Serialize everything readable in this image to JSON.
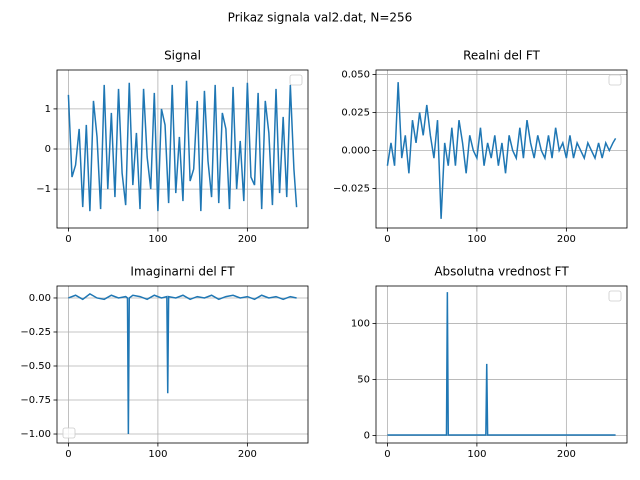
{
  "title": "Prikaz signala val2.dat, N=256",
  "chart_data": [
    {
      "type": "line",
      "title": "Signal",
      "color": "#1f77b4",
      "grid": true,
      "legend": "upper right",
      "xlim": [
        -12.75,
        267.75
      ],
      "ylim": [
        -1.97,
        1.97
      ],
      "xticks": [
        0,
        100,
        200
      ],
      "yticks": [
        {
          "value": -1,
          "label": "−1"
        },
        0,
        1
      ],
      "x": [
        0,
        4,
        8,
        12,
        16,
        20,
        24,
        28,
        32,
        36,
        40,
        44,
        48,
        52,
        56,
        60,
        64,
        68,
        72,
        76,
        80,
        84,
        88,
        92,
        96,
        100,
        104,
        108,
        112,
        116,
        120,
        124,
        128,
        132,
        136,
        140,
        144,
        148,
        152,
        156,
        160,
        164,
        168,
        172,
        176,
        180,
        184,
        188,
        192,
        196,
        200,
        204,
        208,
        212,
        216,
        220,
        224,
        228,
        232,
        236,
        240,
        244,
        248,
        252,
        255
      ],
      "values": [
        1.35,
        -0.7,
        -0.4,
        0.5,
        -1.45,
        0.6,
        -1.55,
        1.2,
        0.3,
        -1.5,
        1.6,
        -1.0,
        0.9,
        -1.2,
        1.5,
        -0.6,
        -1.4,
        1.65,
        -0.9,
        0.4,
        -1.5,
        1.5,
        -0.2,
        -1.0,
        1.4,
        -1.55,
        1.0,
        0.6,
        -1.35,
        1.6,
        -1.1,
        0.3,
        -1.3,
        1.7,
        -0.8,
        -0.5,
        1.2,
        -1.55,
        1.45,
        -0.3,
        -1.2,
        1.6,
        -1.35,
        0.9,
        0.5,
        -1.5,
        1.55,
        -1.0,
        0.2,
        -1.3,
        1.65,
        -0.7,
        -0.9,
        1.4,
        -1.5,
        1.2,
        0.4,
        -1.4,
        1.5,
        -1.1,
        0.8,
        -1.2,
        1.6,
        -0.5,
        -1.45
      ]
    },
    {
      "type": "line",
      "title": "Realni del FT",
      "color": "#1f77b4",
      "grid": true,
      "legend": "upper right",
      "xlim": [
        -12.75,
        267.75
      ],
      "ylim": [
        -0.051,
        0.053
      ],
      "xticks": [
        0,
        100,
        200
      ],
      "yticks": [
        {
          "value": -0.025,
          "label": "−0.025"
        },
        {
          "value": 0,
          "label": "0.000"
        },
        {
          "value": 0.025,
          "label": "0.025"
        },
        {
          "value": 0.05,
          "label": "0.050"
        }
      ],
      "x": [
        0,
        4,
        8,
        12,
        16,
        20,
        24,
        28,
        32,
        36,
        40,
        44,
        48,
        52,
        56,
        60,
        64,
        68,
        72,
        76,
        80,
        84,
        88,
        92,
        96,
        100,
        104,
        108,
        112,
        116,
        120,
        124,
        128,
        132,
        136,
        140,
        144,
        148,
        152,
        156,
        160,
        164,
        168,
        172,
        176,
        180,
        184,
        188,
        192,
        196,
        200,
        204,
        208,
        212,
        216,
        220,
        224,
        228,
        232,
        236,
        240,
        244,
        248,
        252,
        255
      ],
      "values": [
        -0.01,
        0.005,
        -0.01,
        0.045,
        -0.005,
        0.01,
        -0.015,
        0.02,
        0.005,
        0.025,
        0.01,
        0.03,
        0.01,
        -0.005,
        0.02,
        -0.045,
        0.005,
        -0.01,
        0.015,
        -0.01,
        0.02,
        0.005,
        -0.015,
        0.01,
        0.0,
        -0.005,
        0.015,
        -0.01,
        0.005,
        -0.005,
        0.01,
        -0.01,
        0.005,
        -0.015,
        0.01,
        0.0,
        -0.005,
        0.015,
        -0.005,
        0.02,
        0.005,
        -0.005,
        0.01,
        0.0,
        -0.005,
        0.01,
        -0.005,
        0.015,
        0.0,
        0.005,
        -0.005,
        0.01,
        -0.005,
        0.005,
        0.0,
        -0.005,
        0.005,
        0.0,
        -0.005,
        0.005,
        -0.005,
        0.005,
        0.0,
        0.005,
        0.008
      ]
    },
    {
      "type": "line",
      "title": "Imaginarni del FT",
      "color": "#1f77b4",
      "grid": true,
      "legend": "lower left",
      "xlim": [
        -12.75,
        267.75
      ],
      "ylim": [
        -1.066,
        0.088
      ],
      "xticks": [
        0,
        100,
        200
      ],
      "yticks": [
        {
          "value": -1,
          "label": "−1.00"
        },
        {
          "value": -0.75,
          "label": "−0.75"
        },
        {
          "value": -0.5,
          "label": "−0.50"
        },
        {
          "value": -0.25,
          "label": "−0.25"
        },
        {
          "value": 0,
          "label": "0.00"
        }
      ],
      "x": [
        0,
        8,
        16,
        24,
        32,
        40,
        48,
        56,
        64,
        66,
        67,
        68,
        72,
        80,
        88,
        96,
        104,
        110,
        111,
        112,
        120,
        128,
        136,
        144,
        152,
        160,
        168,
        176,
        184,
        192,
        200,
        208,
        216,
        224,
        232,
        240,
        248,
        255
      ],
      "values": [
        0.0,
        0.02,
        -0.01,
        0.03,
        0.0,
        -0.01,
        0.02,
        0.0,
        0.01,
        0.0,
        -1.0,
        0.0,
        0.02,
        0.01,
        -0.01,
        0.02,
        0.0,
        0.01,
        -0.7,
        0.01,
        0.0,
        0.02,
        -0.01,
        0.01,
        0.0,
        0.02,
        -0.01,
        0.01,
        0.02,
        0.0,
        0.01,
        -0.01,
        0.02,
        0.0,
        0.01,
        -0.01,
        0.01,
        0.0
      ]
    },
    {
      "type": "line",
      "title": "Absolutna vrednost FT",
      "color": "#1f77b4",
      "grid": true,
      "legend": "upper right",
      "xlim": [
        -12.75,
        267.75
      ],
      "ylim": [
        -6.6,
        133.5
      ],
      "xticks": [
        0,
        100,
        200
      ],
      "yticks": [
        0,
        50,
        100
      ],
      "x": [
        0,
        8,
        16,
        24,
        32,
        40,
        48,
        56,
        64,
        66,
        67,
        68,
        72,
        80,
        88,
        96,
        104,
        110,
        111,
        112,
        120,
        128,
        136,
        144,
        152,
        160,
        168,
        176,
        184,
        192,
        200,
        208,
        216,
        224,
        232,
        240,
        248,
        255
      ],
      "values": [
        0.5,
        0.5,
        0.5,
        0.5,
        0.5,
        0.5,
        0.5,
        0.5,
        0.5,
        0.5,
        128,
        0.5,
        0.5,
        0.5,
        0.5,
        0.5,
        0.5,
        0.5,
        64,
        0.5,
        0.5,
        0.5,
        0.5,
        0.5,
        0.5,
        0.5,
        0.5,
        0.5,
        0.5,
        0.5,
        0.5,
        0.5,
        0.5,
        0.5,
        0.5,
        0.5,
        0.5,
        0.5
      ]
    }
  ]
}
